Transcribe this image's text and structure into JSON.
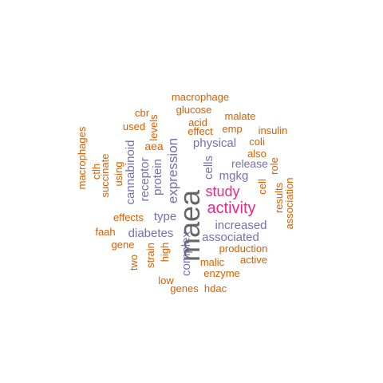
{
  "colors": {
    "background": "#ffffff",
    "tier_low": "#d95f02",
    "tier_mid": "#7570b3",
    "tier_high": "#e7298a",
    "tier_top": "#666666"
  },
  "words": [
    {
      "text": "maea",
      "color": "#666666"
    },
    {
      "text": "activity",
      "color": "#e7298a"
    },
    {
      "text": "study",
      "color": "#e7298a"
    },
    {
      "text": "expression",
      "color": "#7570b3"
    },
    {
      "text": "physical",
      "color": "#7570b3"
    },
    {
      "text": "mgkg",
      "color": "#7570b3"
    },
    {
      "text": "release",
      "color": "#7570b3"
    },
    {
      "text": "cells",
      "color": "#7570b3"
    },
    {
      "text": "protein",
      "color": "#7570b3"
    },
    {
      "text": "receptor",
      "color": "#7570b3"
    },
    {
      "text": "cannabinoid",
      "color": "#7570b3"
    },
    {
      "text": "type",
      "color": "#7570b3"
    },
    {
      "text": "increased",
      "color": "#7570b3"
    },
    {
      "text": "diabetes",
      "color": "#7570b3"
    },
    {
      "text": "associated",
      "color": "#7570b3"
    },
    {
      "text": "complex",
      "color": "#7570b3"
    },
    {
      "text": "aea",
      "color": "#d95f02"
    },
    {
      "text": "macrophage",
      "color": "#d95f02"
    },
    {
      "text": "glucose",
      "color": "#d95f02"
    },
    {
      "text": "cbr",
      "color": "#d95f02"
    },
    {
      "text": "acid",
      "color": "#d95f02"
    },
    {
      "text": "malate",
      "color": "#d95f02"
    },
    {
      "text": "used",
      "color": "#d95f02"
    },
    {
      "text": "levels",
      "color": "#d95f02"
    },
    {
      "text": "effect",
      "color": "#d95f02"
    },
    {
      "text": "emp",
      "color": "#d95f02"
    },
    {
      "text": "insulin",
      "color": "#d95f02"
    },
    {
      "text": "coli",
      "color": "#d95f02"
    },
    {
      "text": "also",
      "color": "#d95f02"
    },
    {
      "text": "macrophages",
      "color": "#d95f02"
    },
    {
      "text": "ctlh",
      "color": "#d95f02"
    },
    {
      "text": "succinate",
      "color": "#d95f02"
    },
    {
      "text": "using",
      "color": "#d95f02"
    },
    {
      "text": "role",
      "color": "#d95f02"
    },
    {
      "text": "cell",
      "color": "#d95f02"
    },
    {
      "text": "results",
      "color": "#d95f02"
    },
    {
      "text": "association",
      "color": "#d95f02"
    },
    {
      "text": "effects",
      "color": "#d95f02"
    },
    {
      "text": "faah",
      "color": "#d95f02"
    },
    {
      "text": "gene",
      "color": "#d95f02"
    },
    {
      "text": "strain",
      "color": "#d95f02"
    },
    {
      "text": "high",
      "color": "#d95f02"
    },
    {
      "text": "production",
      "color": "#d95f02"
    },
    {
      "text": "two",
      "color": "#d95f02"
    },
    {
      "text": "malic",
      "color": "#d95f02"
    },
    {
      "text": "active",
      "color": "#d95f02"
    },
    {
      "text": "enzyme",
      "color": "#d95f02"
    },
    {
      "text": "low",
      "color": "#d95f02"
    },
    {
      "text": "genes",
      "color": "#d95f02"
    },
    {
      "text": "hdac",
      "color": "#d95f02"
    }
  ]
}
